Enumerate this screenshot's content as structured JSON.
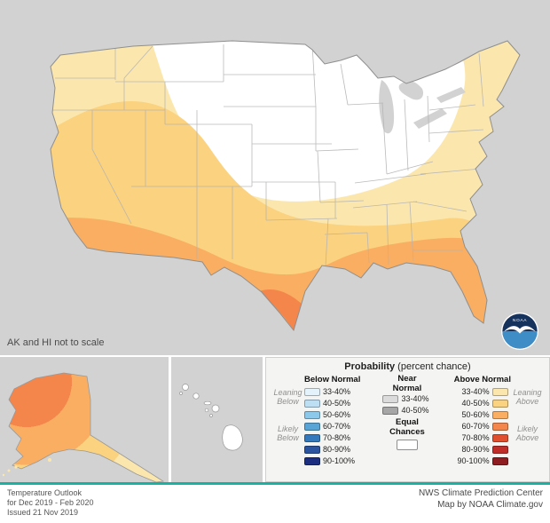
{
  "map": {
    "note": "AK and HI not to scale",
    "colors": {
      "background": "#d2d2d2",
      "equal_chances": "#ffffff",
      "state_border": "#b3b3b3",
      "us_border": "#8f8f8f",
      "island_border": "#999999"
    }
  },
  "legend": {
    "title_bold": "Probability",
    "title_rest": " (percent chance)",
    "below": {
      "header": "Below Normal",
      "leaning": [
        "Leaning",
        "Below"
      ],
      "likely": [
        "Likely",
        "Below"
      ],
      "items": [
        {
          "label": "33-40%",
          "color": "#E3F2FB"
        },
        {
          "label": "40-50%",
          "color": "#BCDFF4"
        },
        {
          "label": "50-60%",
          "color": "#8CC8EA"
        },
        {
          "label": "60-70%",
          "color": "#58A4D6"
        },
        {
          "label": "70-80%",
          "color": "#3579BD"
        },
        {
          "label": "80-90%",
          "color": "#2A53A0"
        },
        {
          "label": "90-100%",
          "color": "#1B2E7F"
        }
      ]
    },
    "near": {
      "header1": "Near",
      "header2": "Normal",
      "equal1": "Equal",
      "equal2": "Chances",
      "equal_color": "#ffffff",
      "items": [
        {
          "label": "33-40%",
          "color": "#DBDBDB"
        },
        {
          "label": "40-50%",
          "color": "#A6A6A6"
        }
      ]
    },
    "above": {
      "header": "Above Normal",
      "leaning": [
        "Leaning",
        "Above"
      ],
      "likely": [
        "Likely",
        "Above"
      ],
      "items": [
        {
          "label": "33-40%",
          "color": "#FBE7AE"
        },
        {
          "label": "40-50%",
          "color": "#FBD27F"
        },
        {
          "label": "50-60%",
          "color": "#FAAE62"
        },
        {
          "label": "60-70%",
          "color": "#F4854B"
        },
        {
          "label": "70-80%",
          "color": "#E0502F"
        },
        {
          "label": "80-90%",
          "color": "#C02C28"
        },
        {
          "label": "90-100%",
          "color": "#8E1D21"
        }
      ]
    }
  },
  "logo": {
    "text": "NOAA",
    "navy": "#16335E",
    "ocean": "#3F8DC6"
  },
  "footer": {
    "accent_color": "#17b2a3",
    "left_line1": "Temperature Outlook",
    "left_line2": "for Dec 2019 - Feb 2020",
    "left_line3": "Issued 21 Nov 2019",
    "right_line1": "NWS Climate Prediction Center",
    "right_line2": "Map by NOAA Climate.gov"
  }
}
